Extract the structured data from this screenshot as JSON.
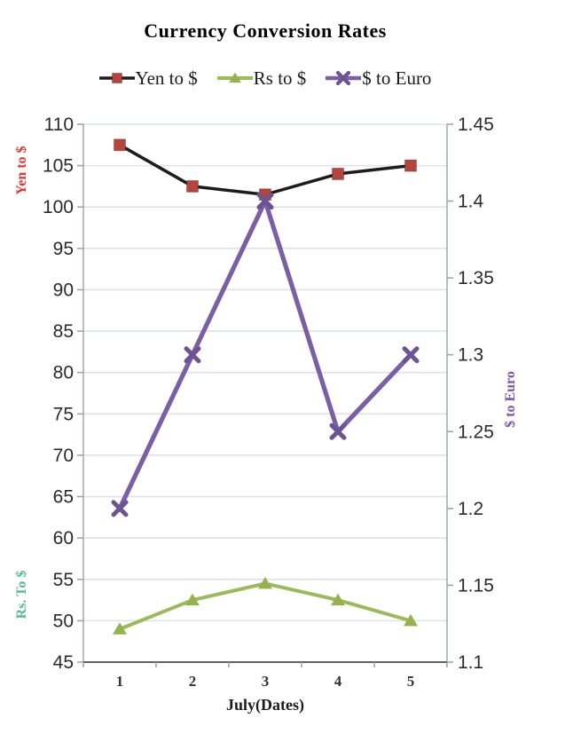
{
  "chart_data": {
    "type": "line",
    "title": "Currency Conversion Rates",
    "x_categories": [
      "1",
      "2",
      "3",
      "4",
      "5"
    ],
    "x_title": "July(Dates)",
    "legend_position": "top",
    "grid": true,
    "axes": {
      "left": {
        "min": 45,
        "max": 110,
        "tick_step": 5,
        "ticks": [
          "45",
          "50",
          "55",
          "60",
          "65",
          "70",
          "75",
          "80",
          "85",
          "90",
          "95",
          "100",
          "105",
          "110"
        ],
        "titles": [
          {
            "text": "Yen to $",
            "color": "#e3362d"
          },
          {
            "text": "Rs. To $",
            "color": "#57bc8c"
          }
        ]
      },
      "right": {
        "min": 1.1,
        "max": 1.45,
        "tick_step": 0.05,
        "ticks": [
          "1.1",
          "1.15",
          "1.2",
          "1.25",
          "1.3",
          "1.35",
          "1.4",
          "1.45"
        ],
        "title": {
          "text": "$ to Euro",
          "color": "#7e52a5"
        }
      }
    },
    "series": [
      {
        "name": "Yen to $",
        "axis": "left",
        "line_color": "#1c1c1c",
        "line_width": 3.5,
        "marker": "square",
        "marker_color": "#b5443d",
        "values": [
          107.5,
          102.5,
          101.5,
          104,
          105
        ]
      },
      {
        "name": "Rs to $",
        "axis": "left",
        "line_color": "#9cba59",
        "line_width": 4,
        "marker": "triangle",
        "marker_color": "#94b350",
        "values": [
          49,
          52.5,
          54.5,
          52.5,
          50
        ]
      },
      {
        "name": "$ to Euro",
        "axis": "right",
        "line_color": "#7a5fa5",
        "line_width": 5.2,
        "marker": "x",
        "marker_color": "#6d5294",
        "values": [
          1.2,
          1.3,
          1.4,
          1.25,
          1.3
        ]
      }
    ],
    "colors": {
      "grid": "#dce1ec",
      "side_axis": "#a6acb8",
      "bottom_axis": "#4a4a4a",
      "axis_tick": "#9aa0ac",
      "tick_text": "#2b2b2b",
      "x_tick_text": "#333333",
      "title_text": "#1b1b1b"
    }
  }
}
